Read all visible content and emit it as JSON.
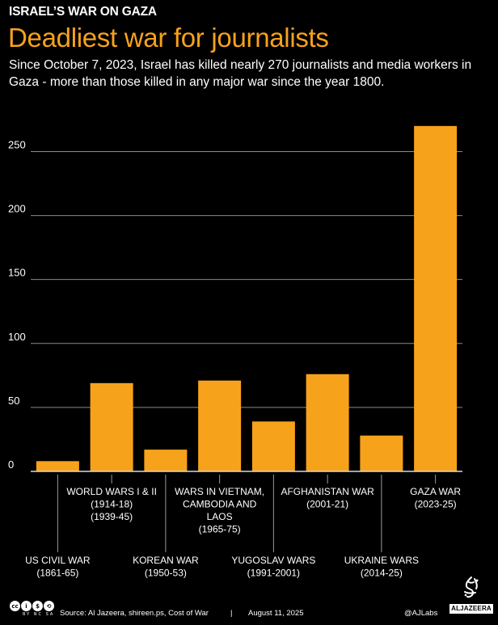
{
  "header": {
    "kicker": "ISRAEL’S WAR ON GAZA",
    "title": "Deadliest war for journalists",
    "subtitle": "Since October 7, 2023, Israel has killed nearly 270 journalists and media workers in Gaza - more than those killed in any major war since the year 1800."
  },
  "chart_data": {
    "type": "bar",
    "categories": [
      [
        "US CIVIL WAR",
        "(1861-65)"
      ],
      [
        "WORLD WARS I & II",
        "(1914-18)",
        "(1939-45)"
      ],
      [
        "KOREAN WAR",
        "(1950-53)"
      ],
      [
        "WARS IN VIETNAM,",
        "CAMBODIA AND",
        "LAOS",
        "(1965-75)"
      ],
      [
        "YUGOSLAV WARS",
        "(1991-2001)"
      ],
      [
        "AFGHANISTAN WAR",
        "(2001-21)"
      ],
      [
        "UKRAINE WARS",
        "(2014-25)"
      ],
      [
        "GAZA WAR",
        "(2023-25)"
      ]
    ],
    "label_position": [
      "low",
      "high",
      "low",
      "high",
      "low",
      "high",
      "low",
      "high"
    ],
    "values": [
      8,
      69,
      17,
      71,
      39,
      76,
      28,
      270
    ],
    "ylim": [
      0,
      280
    ],
    "yticks": [
      0,
      50,
      100,
      150,
      200,
      250
    ],
    "grid": true,
    "bar_color": "#f7a21b"
  },
  "footer": {
    "cc_text": "BY NC SA",
    "source": "Source:  Al Jazeera, shireen.ps, Cost of War",
    "separator": "|",
    "date": "August 11, 2025",
    "handle": "@AJLabs",
    "logo_text": "ALJAZEERA"
  }
}
